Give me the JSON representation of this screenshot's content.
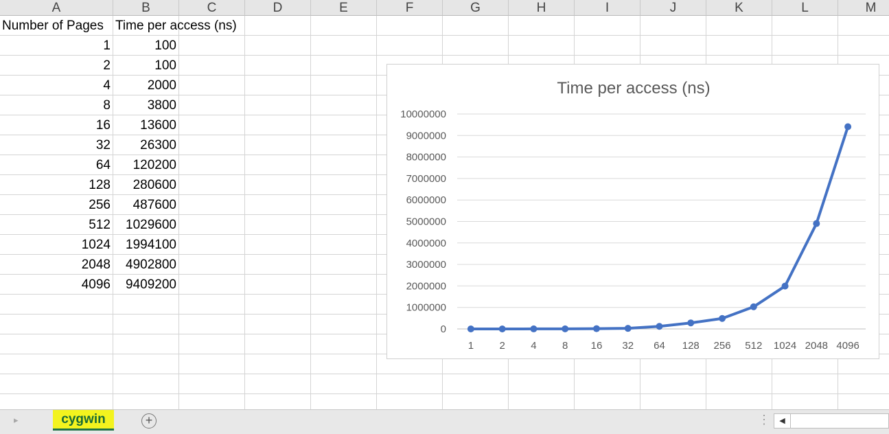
{
  "columns": [
    "A",
    "B",
    "C",
    "D",
    "E",
    "F",
    "G",
    "H",
    "I",
    "J",
    "K",
    "L",
    "M"
  ],
  "header_row": {
    "a": "Number of Pages",
    "b": "Time per access (ns)"
  },
  "rows": [
    {
      "pages": "1",
      "time": "100"
    },
    {
      "pages": "2",
      "time": "100"
    },
    {
      "pages": "4",
      "time": "2000"
    },
    {
      "pages": "8",
      "time": "3800"
    },
    {
      "pages": "16",
      "time": "13600"
    },
    {
      "pages": "32",
      "time": "26300"
    },
    {
      "pages": "64",
      "time": "120200"
    },
    {
      "pages": "128",
      "time": "280600"
    },
    {
      "pages": "256",
      "time": "487600"
    },
    {
      "pages": "512",
      "time": "1029600"
    },
    {
      "pages": "1024",
      "time": "1994100"
    },
    {
      "pages": "2048",
      "time": "4902800"
    },
    {
      "pages": "4096",
      "time": "9409200"
    }
  ],
  "chart_data": {
    "type": "line",
    "title": "Time per access (ns)",
    "categories": [
      "1",
      "2",
      "4",
      "8",
      "16",
      "32",
      "64",
      "128",
      "256",
      "512",
      "1024",
      "2048",
      "4096"
    ],
    "values": [
      100,
      100,
      2000,
      3800,
      13600,
      26300,
      120200,
      280600,
      487600,
      1029600,
      1994100,
      4902800,
      9409200
    ],
    "ylim": [
      0,
      10000000
    ],
    "yticks": [
      "0",
      "1000000",
      "2000000",
      "3000000",
      "4000000",
      "5000000",
      "6000000",
      "7000000",
      "8000000",
      "9000000",
      "10000000"
    ],
    "grid": true,
    "line_color": "#4472c4"
  },
  "tabs": {
    "active": "cygwin",
    "add_label": "+"
  },
  "icons": {
    "prev_sheet": "caret-left-icon",
    "next_sheet": "caret-right-icon",
    "add": "plus-circle-icon",
    "options": "vertical-dots-icon",
    "scroll_left": "scroll-left-arrow-icon"
  }
}
